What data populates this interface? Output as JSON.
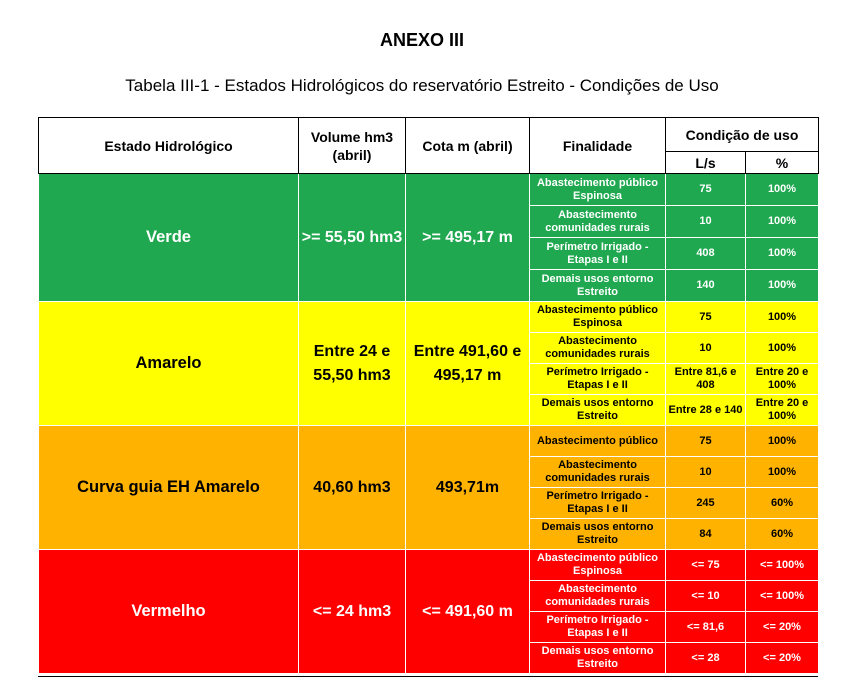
{
  "document": {
    "annex_title": "ANEXO III",
    "table_caption": "Tabela III-1 - Estados Hidrológicos do reservatório Estreito - Condições de Uso"
  },
  "table": {
    "headers": {
      "estado": "Estado Hidrológico",
      "volume": "Volume hm3 (abril)",
      "cota": "Cota m (abril)",
      "finalidade": "Finalidade",
      "condicao": "Condição de uso",
      "ls": "L/s",
      "pct": "%"
    },
    "states": [
      {
        "name": "Verde",
        "volume": ">= 55,50 hm3",
        "cota": ">= 495,17 m",
        "color": "#1fa84f",
        "rows": [
          {
            "finalidade": "Abastecimento público Espinosa",
            "ls": "75",
            "pct": "100%"
          },
          {
            "finalidade": "Abastecimento comunidades rurais",
            "ls": "10",
            "pct": "100%"
          },
          {
            "finalidade": "Perímetro Irrigado - Etapas I e II",
            "ls": "408",
            "pct": "100%"
          },
          {
            "finalidade": "Demais usos entorno Estreito",
            "ls": "140",
            "pct": "100%"
          }
        ]
      },
      {
        "name": "Amarelo",
        "volume": "Entre 24 e 55,50 hm3",
        "cota": "Entre 491,60 e 495,17 m",
        "color": "#ffff00",
        "rows": [
          {
            "finalidade": "Abastecimento público Espinosa",
            "ls": "75",
            "pct": "100%"
          },
          {
            "finalidade": "Abastecimento comunidades rurais",
            "ls": "10",
            "pct": "100%"
          },
          {
            "finalidade": "Perímetro Irrigado - Etapas I e II",
            "ls": "Entre 81,6 e 408",
            "pct": "Entre 20 e 100%"
          },
          {
            "finalidade": "Demais usos entorno Estreito",
            "ls": "Entre 28 e 140",
            "pct": "Entre 20 e 100%"
          }
        ]
      },
      {
        "name": "Curva guia EH Amarelo",
        "volume": "40,60 hm3",
        "cota": "493,71m",
        "color": "#ffb200",
        "rows": [
          {
            "finalidade": "Abastecimento público",
            "ls": "75",
            "pct": "100%"
          },
          {
            "finalidade": "Abastecimento comunidades rurais",
            "ls": "10",
            "pct": "100%"
          },
          {
            "finalidade": "Perímetro Irrigado - Etapas I e II",
            "ls": "245",
            "pct": "60%"
          },
          {
            "finalidade": "Demais usos entorno Estreito",
            "ls": "84",
            "pct": "60%"
          }
        ]
      },
      {
        "name": "Vermelho",
        "volume": "<= 24 hm3",
        "cota": "<= 491,60 m",
        "color": "#ff0000",
        "rows": [
          {
            "finalidade": "Abastecimento público Espinosa",
            "ls": "<= 75",
            "pct": "<= 100%"
          },
          {
            "finalidade": "Abastecimento comunidades rurais",
            "ls": "<= 10",
            "pct": "<= 100%"
          },
          {
            "finalidade": "Perímetro Irrigado - Etapas I e II",
            "ls": "<= 81,6",
            "pct": "<= 20%"
          },
          {
            "finalidade": "Demais usos entorno Estreito",
            "ls": "<= 28",
            "pct": "<= 20%"
          }
        ]
      }
    ]
  }
}
